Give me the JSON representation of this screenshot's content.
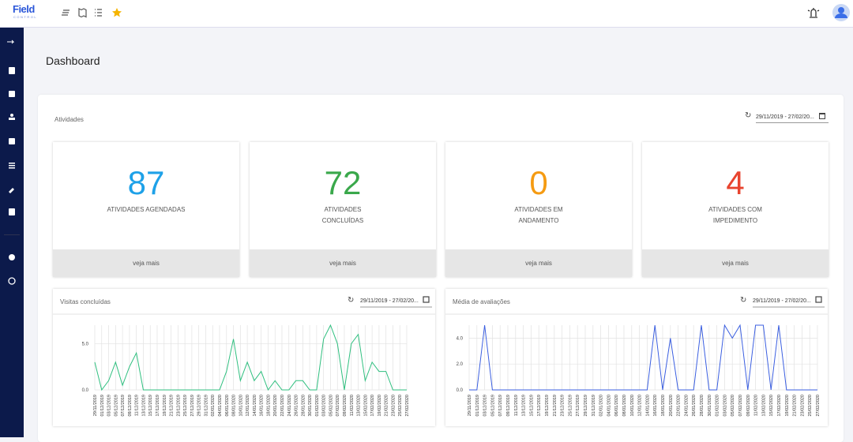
{
  "header": {
    "logo": "Field",
    "logo_sub": "CONTROL"
  },
  "page_title": "Dashboard",
  "panel": {
    "title": "Atividades",
    "date_range": "29/11/2019 - 27/02/20...",
    "cards": [
      {
        "value": 87,
        "label": "ATIVIDADES AGENDADAS",
        "color": "#1ea1e8",
        "link": "veja mais"
      },
      {
        "value": 72,
        "label": "ATIVIDADES CONCLUÍDAS",
        "color": "#3aa84b",
        "link": "veja mais"
      },
      {
        "value": 0,
        "label": "ATIVIDADES EM ANDAMENTO",
        "color": "#f59b12",
        "link": "veja mais"
      },
      {
        "value": 4,
        "label": "ATIVIDADES COM IMPEDIMENTO",
        "color": "#e8442f",
        "link": "veja mais"
      }
    ]
  },
  "chart_data": [
    {
      "type": "line",
      "title": "Visitas concluídas",
      "date_range": "29/11/2019 - 27/02/20...",
      "color": "#2fbf7f",
      "categories": [
        "29/11/2019",
        "01/12/2019",
        "03/12/2019",
        "05/12/2019",
        "07/12/2019",
        "09/12/2019",
        "11/12/2019",
        "13/12/2019",
        "15/12/2019",
        "17/12/2019",
        "19/12/2019",
        "21/12/2019",
        "23/12/2019",
        "25/12/2019",
        "27/12/2019",
        "29/12/2019",
        "31/12/2019",
        "02/01/2020",
        "04/01/2020",
        "06/01/2020",
        "08/01/2020",
        "10/01/2020",
        "12/01/2020",
        "14/01/2020",
        "16/01/2020",
        "18/01/2020",
        "20/01/2020",
        "22/01/2020",
        "24/01/2020",
        "26/01/2020",
        "28/01/2020",
        "30/01/2020",
        "01/02/2020",
        "03/02/2020",
        "05/02/2020",
        "07/02/2020",
        "09/02/2020",
        "11/02/2020",
        "13/02/2020",
        "15/02/2020",
        "17/02/2020",
        "19/02/2020",
        "21/02/2020",
        "23/02/2020",
        "25/02/2020",
        "27/02/2020"
      ],
      "values": [
        3,
        0,
        1,
        3,
        0.5,
        2.5,
        4,
        0,
        0,
        0,
        0,
        0,
        0,
        0,
        0,
        0,
        0,
        0,
        0,
        2,
        5.5,
        1,
        3,
        1,
        2,
        0,
        1,
        0,
        0,
        1,
        1,
        0,
        0,
        5.5,
        7,
        5,
        0,
        5,
        6,
        1,
        3,
        2,
        2,
        0,
        0,
        0
      ],
      "ylim": [
        0,
        7
      ],
      "yticks": [
        {
          "value": 0,
          "label": "0.0"
        },
        {
          "value": 5,
          "label": "5.0"
        }
      ],
      "grid": true
    },
    {
      "type": "line",
      "title": "Média de avaliações",
      "date_range": "29/11/2019 - 27/02/20...",
      "color": "#3a5ee0",
      "categories": [
        "29/11/2019",
        "01/12/2019",
        "03/12/2019",
        "05/12/2019",
        "07/12/2019",
        "09/12/2019",
        "11/12/2019",
        "13/12/2019",
        "15/12/2019",
        "17/12/2019",
        "19/12/2019",
        "21/12/2019",
        "23/12/2019",
        "25/12/2019",
        "27/12/2019",
        "29/12/2019",
        "31/12/2019",
        "02/01/2020",
        "04/01/2020",
        "06/01/2020",
        "08/01/2020",
        "10/01/2020",
        "12/01/2020",
        "14/01/2020",
        "16/01/2020",
        "18/01/2020",
        "20/01/2020",
        "22/01/2020",
        "24/01/2020",
        "26/01/2020",
        "28/01/2020",
        "30/01/2020",
        "01/02/2020",
        "03/02/2020",
        "05/02/2020",
        "07/02/2020",
        "09/02/2020",
        "11/02/2020",
        "13/02/2020",
        "15/02/2020",
        "17/02/2020",
        "19/02/2020",
        "21/02/2020",
        "23/02/2020",
        "25/02/2020",
        "27/02/2020"
      ],
      "values": [
        0,
        0,
        5,
        0,
        0,
        0,
        0,
        0,
        0,
        0,
        0,
        0,
        0,
        0,
        0,
        0,
        0,
        0,
        0,
        0,
        0,
        0,
        0,
        0,
        5,
        0,
        4,
        0,
        0,
        0,
        5,
        0,
        0,
        5,
        4,
        5,
        0,
        5,
        5,
        0,
        5,
        0,
        0,
        0,
        0,
        0
      ],
      "ylim": [
        0,
        5
      ],
      "yticks": [
        {
          "value": 0,
          "label": "0.0"
        },
        {
          "value": 2,
          "label": "2.0"
        },
        {
          "value": 4,
          "label": "4.0"
        }
      ],
      "grid": true
    }
  ]
}
